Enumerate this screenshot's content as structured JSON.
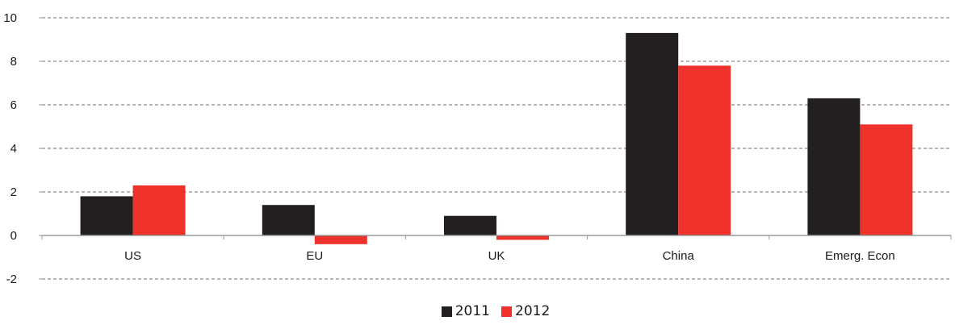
{
  "chart_data": {
    "type": "bar",
    "categories": [
      "US",
      "EU",
      "UK",
      "China",
      "Emerg. Econ"
    ],
    "series": [
      {
        "name": "2011",
        "color": "#231f20",
        "values": [
          1.8,
          1.4,
          0.9,
          9.3,
          6.3
        ]
      },
      {
        "name": "2012",
        "color": "#ee312b",
        "values": [
          2.3,
          -0.4,
          -0.2,
          7.8,
          5.1
        ]
      }
    ],
    "ylim": [
      -2,
      10
    ],
    "yticks": [
      "10",
      "8",
      "6",
      "4",
      "2",
      "0",
      "-2"
    ],
    "ytick_values": [
      10,
      8,
      6,
      4,
      2,
      0,
      -2
    ],
    "grid": true,
    "legend_position": "bottom-center"
  }
}
